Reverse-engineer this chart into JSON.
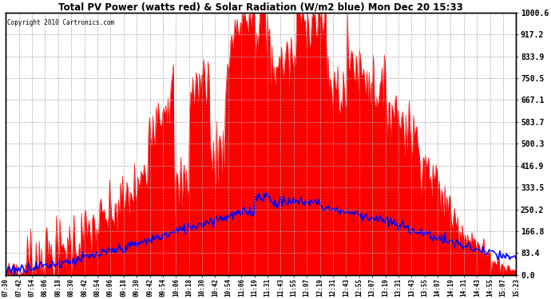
{
  "title": "Total PV Power (watts red) & Solar Radiation (W/m2 blue) Mon Dec 20 15:33",
  "copyright": "Copyright 2010 Cartronics.com",
  "yticks": [
    0.0,
    83.4,
    166.8,
    250.2,
    333.5,
    416.9,
    500.3,
    583.7,
    667.1,
    750.5,
    833.9,
    917.2,
    1000.6
  ],
  "ylim": [
    0,
    1000.6
  ],
  "pv_color": "#FF0000",
  "solar_color": "#0000FF",
  "bg_color": "#FFFFFF",
  "grid_color": "#AAAAAA",
  "xtick_labels": [
    "07:30",
    "07:42",
    "07:54",
    "08:06",
    "08:18",
    "08:30",
    "08:42",
    "08:54",
    "09:06",
    "09:18",
    "09:30",
    "09:42",
    "09:54",
    "10:06",
    "10:18",
    "10:30",
    "10:42",
    "10:54",
    "11:06",
    "11:19",
    "11:31",
    "11:43",
    "11:55",
    "12:07",
    "12:19",
    "12:31",
    "12:43",
    "12:55",
    "13:07",
    "13:19",
    "13:31",
    "13:43",
    "13:55",
    "14:07",
    "14:19",
    "14:31",
    "14:43",
    "14:55",
    "15:07",
    "15:23"
  ],
  "figsize": [
    6.9,
    3.75
  ],
  "dpi": 100
}
